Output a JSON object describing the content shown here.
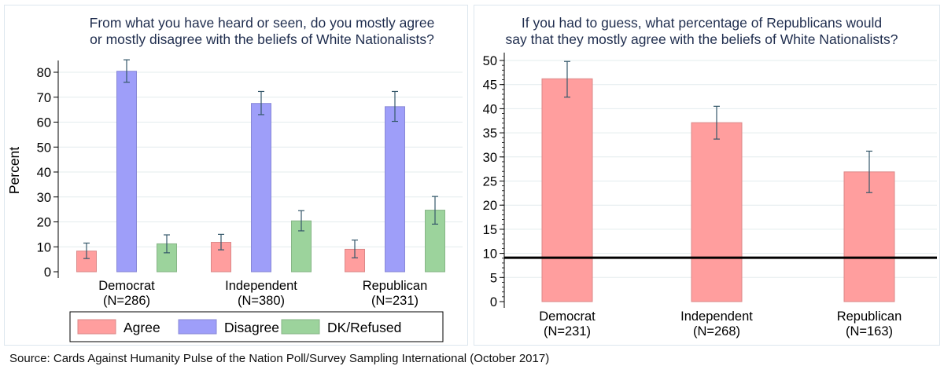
{
  "chart_data": [
    {
      "type": "bar",
      "title_lines": [
        "From what you have heard or seen, do you mostly agree",
        "or mostly disagree with the beliefs of White Nationalists?"
      ],
      "ylabel": "Percent",
      "xlabel": "",
      "ylim": [
        0,
        80
      ],
      "yticks": [
        0,
        10,
        20,
        30,
        40,
        50,
        60,
        70,
        80
      ],
      "categories": [
        {
          "name": "Democrat",
          "n": "(N=286)"
        },
        {
          "name": "Independent",
          "n": "(N=380)"
        },
        {
          "name": "Republican",
          "n": "(N=231)"
        }
      ],
      "series": [
        {
          "name": "Agree",
          "color": "#ff9e9e",
          "values": [
            8.3,
            11.8,
            9.0
          ],
          "ci": [
            [
              5.3,
              11.5
            ],
            [
              8.8,
              15.0
            ],
            [
              5.6,
              12.7
            ]
          ]
        },
        {
          "name": "Disagree",
          "color": "#9e9ef9",
          "values": [
            80.4,
            67.5,
            66.2
          ],
          "ci": [
            [
              76.0,
              85.0
            ],
            [
              63.0,
              72.3
            ],
            [
              60.3,
              72.3
            ]
          ]
        },
        {
          "name": "DK/Refused",
          "color": "#9cd39c",
          "values": [
            11.2,
            20.4,
            24.7
          ],
          "ci": [
            [
              7.6,
              14.8
            ],
            [
              16.4,
              24.5
            ],
            [
              19.1,
              30.2
            ]
          ]
        }
      ],
      "grid": true,
      "legend_position": "bottom"
    },
    {
      "type": "bar",
      "title_lines": [
        "If you had to guess, what percentage of Republicans would",
        "say that they mostly agree with the beliefs of White Nationalists?"
      ],
      "ylabel": "",
      "xlabel": "",
      "ylim": [
        0,
        50
      ],
      "yticks": [
        0,
        5,
        10,
        15,
        20,
        25,
        30,
        35,
        40,
        45,
        50
      ],
      "categories": [
        {
          "name": "Democrat",
          "n": "(N=231)"
        },
        {
          "name": "Independent",
          "n": "(N=268)"
        },
        {
          "name": "Republican",
          "n": "(N=163)"
        }
      ],
      "series": [
        {
          "color": "#ff9e9e",
          "values": [
            46.2,
            37.1,
            26.9
          ],
          "ci": [
            [
              42.4,
              49.8
            ],
            [
              33.7,
              40.5
            ],
            [
              22.6,
              31.2
            ]
          ]
        }
      ],
      "reference_line": {
        "value": 9.1,
        "color": "#000000"
      },
      "grid": true
    }
  ],
  "source": "Source: Cards Against Humanity Pulse of the Nation Poll/Survey Sampling International (October 2017)"
}
